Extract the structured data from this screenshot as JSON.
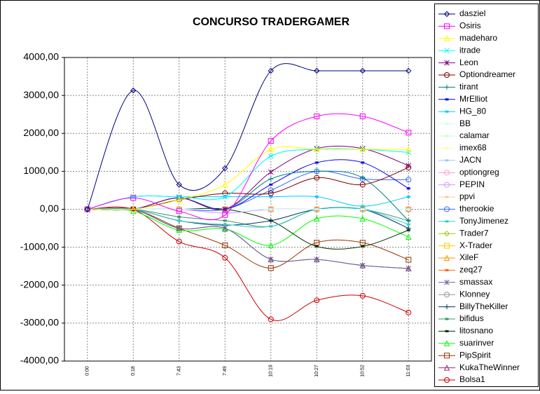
{
  "chart_data": {
    "type": "line",
    "title": "CONCURSO TRADERGAMER",
    "categories": [
      "0:00",
      "0:18",
      "7:43",
      "7:49",
      "10:19",
      "10:27",
      "10:52",
      "11:03"
    ],
    "ylim": [
      -4000,
      4000
    ],
    "yticks": [
      {
        "value": 4000,
        "label": "4000,00"
      },
      {
        "value": 3000,
        "label": "3000,00"
      },
      {
        "value": 2000,
        "label": "2000,00"
      },
      {
        "value": 1000,
        "label": "1000,00"
      },
      {
        "value": 0,
        "label": "0,00"
      },
      {
        "value": -1000,
        "label": "-1000,00"
      },
      {
        "value": -2000,
        "label": "-2000,00"
      },
      {
        "value": -3000,
        "label": "-3000,00"
      },
      {
        "value": -4000,
        "label": "-4000,00"
      }
    ],
    "grid": true,
    "legend": "right",
    "series": [
      {
        "name": "dasziel",
        "color": "#000080",
        "marker": "diamond",
        "values": [
          0,
          3130,
          650,
          1080,
          3650,
          3650,
          3650,
          3650
        ]
      },
      {
        "name": "Osiris",
        "color": "#FF00FF",
        "marker": "square",
        "values": [
          0,
          300,
          -50,
          -150,
          1800,
          2450,
          2450,
          2020
        ]
      },
      {
        "name": "madeharo",
        "color": "#FFFF00",
        "marker": "triangle",
        "values": [
          0,
          0,
          250,
          650,
          1580,
          1580,
          1580,
          1580
        ]
      },
      {
        "name": "itrade",
        "color": "#00FFFF",
        "marker": "x",
        "values": [
          0,
          330,
          330,
          330,
          1400,
          1580,
          1580,
          1500
        ]
      },
      {
        "name": "Leon",
        "color": "#800080",
        "marker": "star",
        "values": [
          0,
          0,
          300,
          0,
          980,
          1600,
          1600,
          1150
        ]
      },
      {
        "name": "Optiondreamer",
        "color": "#800000",
        "marker": "circle",
        "values": [
          0,
          0,
          250,
          420,
          420,
          830,
          650,
          1100
        ]
      },
      {
        "name": "tirant",
        "color": "#008080",
        "marker": "plus",
        "values": [
          0,
          0,
          300,
          0,
          800,
          1000,
          830,
          -300
        ]
      },
      {
        "name": "MrElliot",
        "color": "#0000FF",
        "marker": "dash",
        "values": [
          0,
          0,
          300,
          0,
          650,
          1230,
          1230,
          550
        ]
      },
      {
        "name": "HG_80",
        "color": "#00CCFF",
        "marker": "dash",
        "values": [
          0,
          330,
          330,
          330,
          330,
          330,
          80,
          330
        ]
      },
      {
        "name": "BB",
        "color": "#CCFFFF",
        "marker": "dash",
        "values": [
          0,
          0,
          0,
          0,
          0,
          0,
          0,
          0
        ]
      },
      {
        "name": "calamar",
        "color": "#CCFFCC",
        "marker": "dash",
        "values": [
          0,
          0,
          0,
          0,
          0,
          0,
          0,
          0
        ]
      },
      {
        "name": "imex68",
        "color": "#FFFF99",
        "marker": "dash",
        "values": [
          0,
          0,
          250,
          650,
          1580,
          1580,
          1580,
          1500
        ]
      },
      {
        "name": "JACN",
        "color": "#99CCFF",
        "marker": "dash",
        "values": [
          0,
          330,
          330,
          330,
          1400,
          1580,
          1580,
          1500
        ]
      },
      {
        "name": "optiongreg",
        "color": "#FF99CC",
        "marker": "circle",
        "values": [
          0,
          0,
          0,
          0,
          0,
          0,
          0,
          0
        ]
      },
      {
        "name": "PEPIN",
        "color": "#CC99FF",
        "marker": "circle",
        "values": [
          0,
          0,
          0,
          -100,
          0,
          0,
          0,
          0
        ]
      },
      {
        "name": "ppvi",
        "color": "#FFCC99",
        "marker": "dash",
        "values": [
          0,
          0,
          0,
          0,
          0,
          0,
          0,
          0
        ]
      },
      {
        "name": "therookie",
        "color": "#3366FF",
        "marker": "circle",
        "values": [
          0,
          0,
          0,
          0,
          500,
          1000,
          800,
          780
        ]
      },
      {
        "name": "TonyJimenez",
        "color": "#33CCCC",
        "marker": "dash",
        "values": [
          0,
          0,
          -300,
          -400,
          -450,
          0,
          0,
          -400
        ]
      },
      {
        "name": "Trader7",
        "color": "#99CC00",
        "marker": "diamond",
        "values": [
          0,
          0,
          0,
          0,
          0,
          0,
          0,
          0
        ]
      },
      {
        "name": "X-Trader",
        "color": "#FFCC00",
        "marker": "square",
        "values": [
          0,
          0,
          0,
          0,
          0,
          0,
          0,
          0
        ]
      },
      {
        "name": "XileF",
        "color": "#FF9900",
        "marker": "triangle",
        "values": [
          0,
          0,
          0,
          0,
          0,
          0,
          0,
          0
        ]
      },
      {
        "name": "zeq27",
        "color": "#FF6600",
        "marker": "dash",
        "values": [
          0,
          0,
          0,
          0,
          0,
          0,
          0,
          0
        ]
      },
      {
        "name": "smassax",
        "color": "#666699",
        "marker": "star",
        "values": [
          0,
          0,
          -500,
          -500,
          -1320,
          -1320,
          -1480,
          -1560
        ]
      },
      {
        "name": "Klonney",
        "color": "#969696",
        "marker": "circle",
        "values": [
          0,
          0,
          0,
          0,
          0,
          0,
          0,
          0
        ]
      },
      {
        "name": "BillyTheKiller",
        "color": "#003366",
        "marker": "plus",
        "values": [
          0,
          0,
          -300,
          -420,
          -300,
          0,
          0,
          -500
        ]
      },
      {
        "name": "bifidus",
        "color": "#339966",
        "marker": "dash",
        "values": [
          0,
          0,
          -200,
          -300,
          -450,
          0,
          0,
          -300
        ]
      },
      {
        "name": "litosnano",
        "color": "#003300",
        "marker": "dash",
        "values": [
          0,
          0,
          0,
          0,
          -300,
          -980,
          -980,
          -550
        ]
      },
      {
        "name": "suarinver",
        "color": "#00FF00",
        "marker": "triangle",
        "values": [
          0,
          -50,
          -550,
          -520,
          -950,
          -250,
          -250,
          -730
        ]
      },
      {
        "name": "PipSpirit",
        "color": "#993300",
        "marker": "square",
        "values": [
          0,
          0,
          -500,
          -950,
          -1550,
          -880,
          -880,
          -1330
        ]
      },
      {
        "name": "KukaTheWinner",
        "color": "#993366",
        "marker": "triangle",
        "values": [
          0,
          0,
          -500,
          -500,
          -1320,
          -1320,
          -1480,
          -1560
        ]
      },
      {
        "name": "Bolsa1",
        "color": "#CC0000",
        "marker": "circle",
        "values": [
          0,
          0,
          -850,
          -1280,
          -2900,
          -2400,
          -2280,
          -2720
        ]
      }
    ]
  }
}
